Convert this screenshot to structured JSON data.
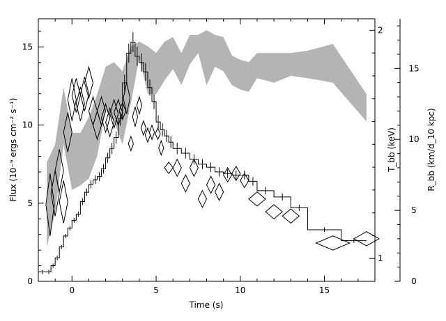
{
  "chart_data": {
    "type": "line",
    "title": "",
    "xlabel": "Time (s)",
    "ylabel_left": "Flux (10⁻⁹ ergs cm⁻² s⁻¹)",
    "ylabel_right_inner": "T_bb (keV)",
    "ylabel_right_outer": "R_bb (km/d_10 kpc)",
    "xlim": [
      -2,
      18
    ],
    "ylim_flux": [
      0,
      16.8
    ],
    "ylim_kT": [
      0.9,
      2.05
    ],
    "ylim_R": [
      0,
      18.5
    ],
    "x_ticks": [
      0,
      5,
      10,
      15
    ],
    "y_ticks_flux": [
      0,
      5,
      10,
      15
    ],
    "y_ticks_kT": [
      1,
      2
    ],
    "y_ticks_R": [
      0,
      5,
      10,
      15
    ],
    "colors": {
      "flux": "#000000",
      "kT_band": "#b4b4b4",
      "radius": "#000000"
    },
    "series": [
      {
        "name": "",
        "axis": "flux",
        "style": "step-with-errors",
        "points": [
          [
            -2.0,
            0.6
          ],
          [
            -1.5,
            0.6
          ],
          [
            -1.25,
            1.0
          ],
          [
            -1.0,
            1.5
          ],
          [
            -0.75,
            2.2
          ],
          [
            -0.5,
            2.9
          ],
          [
            -0.25,
            3.4
          ],
          [
            0.0,
            3.9
          ],
          [
            0.25,
            4.3
          ],
          [
            0.5,
            5.1
          ],
          [
            0.75,
            5.7
          ],
          [
            1.0,
            6.2
          ],
          [
            1.25,
            6.5
          ],
          [
            1.5,
            6.7
          ],
          [
            1.75,
            7.2
          ],
          [
            2.0,
            7.9
          ],
          [
            2.25,
            8.5
          ],
          [
            2.5,
            9.2
          ],
          [
            2.75,
            10.4
          ],
          [
            3.0,
            12.7
          ],
          [
            3.25,
            14.6
          ],
          [
            3.5,
            15.3
          ],
          [
            3.75,
            14.4
          ],
          [
            4.0,
            14.0
          ],
          [
            4.25,
            13.4
          ],
          [
            4.5,
            12.4
          ],
          [
            4.75,
            11.5
          ],
          [
            5.0,
            10.2
          ],
          [
            5.25,
            9.7
          ],
          [
            5.5,
            9.3
          ],
          [
            5.75,
            8.9
          ],
          [
            6.0,
            8.5
          ],
          [
            6.5,
            8.2
          ],
          [
            7.0,
            7.8
          ],
          [
            7.5,
            7.5
          ],
          [
            8.0,
            7.3
          ],
          [
            8.5,
            7.0
          ],
          [
            9.0,
            6.9
          ],
          [
            9.5,
            6.8
          ],
          [
            10.0,
            6.8
          ],
          [
            10.5,
            6.4
          ],
          [
            11.0,
            5.8
          ],
          [
            12.0,
            5.4
          ],
          [
            13.0,
            4.7
          ],
          [
            14.0,
            3.3
          ],
          [
            16.0,
            2.6
          ],
          [
            17.5,
            2.6
          ]
        ]
      },
      {
        "name": "",
        "axis": "kT",
        "style": "band",
        "x": [
          -1.5,
          -1.0,
          -0.5,
          0.0,
          0.5,
          1.0,
          1.5,
          2.0,
          2.5,
          3.0,
          3.5,
          4.0,
          4.5,
          5.0,
          5.5,
          6.0,
          6.5,
          7.0,
          7.5,
          8.0,
          8.5,
          9.0,
          9.5,
          10.0,
          10.5,
          11.0,
          12.0,
          13.0,
          14.0,
          15.5,
          17.5
        ],
        "lo": [
          1.05,
          1.2,
          1.5,
          1.3,
          1.32,
          1.35,
          1.45,
          1.65,
          1.6,
          1.5,
          1.68,
          1.88,
          1.72,
          1.72,
          1.78,
          1.83,
          1.76,
          1.85,
          1.9,
          1.76,
          1.84,
          1.82,
          1.76,
          1.74,
          1.73,
          1.79,
          1.77,
          1.8,
          1.79,
          1.77,
          1.6
        ],
        "hi": [
          1.42,
          1.5,
          1.75,
          1.55,
          1.55,
          1.62,
          1.72,
          1.84,
          1.86,
          1.82,
          1.93,
          1.95,
          1.93,
          1.9,
          1.95,
          1.97,
          1.9,
          1.98,
          1.98,
          2.0,
          1.98,
          1.97,
          1.89,
          1.87,
          1.86,
          1.9,
          1.9,
          1.9,
          1.91,
          1.94,
          1.72
        ]
      },
      {
        "name": "",
        "axis": "R",
        "style": "diamonds",
        "points": [
          {
            "x": -1.3,
            "y": 5.4,
            "dx": 0.25,
            "dy": 2.2
          },
          {
            "x": -1.0,
            "y": 6.2,
            "dx": 0.25,
            "dy": 1.6
          },
          {
            "x": -0.75,
            "y": 7.8,
            "dx": 0.25,
            "dy": 1.5
          },
          {
            "x": -0.5,
            "y": 5.6,
            "dx": 0.25,
            "dy": 1.5
          },
          {
            "x": -0.25,
            "y": 10.5,
            "dx": 0.25,
            "dy": 1.4
          },
          {
            "x": 0.0,
            "y": 12.8,
            "dx": 0.25,
            "dy": 1.5
          },
          {
            "x": 0.25,
            "y": 13.1,
            "dx": 0.25,
            "dy": 1.2
          },
          {
            "x": 0.5,
            "y": 12.5,
            "dx": 0.25,
            "dy": 1.2
          },
          {
            "x": 0.75,
            "y": 13.2,
            "dx": 0.25,
            "dy": 1.2
          },
          {
            "x": 1.0,
            "y": 14.0,
            "dx": 0.25,
            "dy": 1.1
          },
          {
            "x": 1.25,
            "y": 12.0,
            "dx": 0.25,
            "dy": 1.0
          },
          {
            "x": 1.5,
            "y": 11.0,
            "dx": 0.25,
            "dy": 1.0
          },
          {
            "x": 1.75,
            "y": 12.0,
            "dx": 0.25,
            "dy": 1.0
          },
          {
            "x": 2.0,
            "y": 11.5,
            "dx": 0.25,
            "dy": 1.0
          },
          {
            "x": 2.25,
            "y": 11.2,
            "dx": 0.25,
            "dy": 1.0
          },
          {
            "x": 2.5,
            "y": 11.8,
            "dx": 0.25,
            "dy": 1.0
          },
          {
            "x": 2.75,
            "y": 11.9,
            "dx": 0.25,
            "dy": 0.9
          },
          {
            "x": 3.0,
            "y": 12.0,
            "dx": 0.2,
            "dy": 0.6
          },
          {
            "x": 3.25,
            "y": 12.9,
            "dx": 0.2,
            "dy": 1.1
          },
          {
            "x": 3.5,
            "y": 9.7,
            "dx": 0.15,
            "dy": 0.5
          },
          {
            "x": 3.75,
            "y": 11.6,
            "dx": 0.15,
            "dy": 0.7
          },
          {
            "x": 4.0,
            "y": 12.4,
            "dx": 0.15,
            "dy": 0.6
          },
          {
            "x": 4.25,
            "y": 10.8,
            "dx": 0.15,
            "dy": 0.5
          },
          {
            "x": 4.5,
            "y": 10.3,
            "dx": 0.15,
            "dy": 0.5
          },
          {
            "x": 4.75,
            "y": 10.5,
            "dx": 0.15,
            "dy": 0.5
          },
          {
            "x": 5.1,
            "y": 10.4,
            "dx": 0.15,
            "dy": 0.4
          },
          {
            "x": 5.3,
            "y": 9.4,
            "dx": 0.15,
            "dy": 0.5
          },
          {
            "x": 5.75,
            "y": 8.0,
            "dx": 0.25,
            "dy": 0.4
          },
          {
            "x": 6.25,
            "y": 8.0,
            "dx": 0.25,
            "dy": 0.6
          },
          {
            "x": 6.75,
            "y": 6.9,
            "dx": 0.25,
            "dy": 0.6
          },
          {
            "x": 7.25,
            "y": 8.0,
            "dx": 0.25,
            "dy": 0.6
          },
          {
            "x": 7.75,
            "y": 5.8,
            "dx": 0.25,
            "dy": 0.6
          },
          {
            "x": 8.25,
            "y": 6.8,
            "dx": 0.25,
            "dy": 0.6
          },
          {
            "x": 8.75,
            "y": 6.3,
            "dx": 0.25,
            "dy": 0.6
          },
          {
            "x": 9.25,
            "y": 7.5,
            "dx": 0.25,
            "dy": 0.5
          },
          {
            "x": 9.75,
            "y": 7.6,
            "dx": 0.25,
            "dy": 0.5
          },
          {
            "x": 10.25,
            "y": 7.1,
            "dx": 0.25,
            "dy": 0.5
          },
          {
            "x": 11.0,
            "y": 5.8,
            "dx": 0.5,
            "dy": 0.5
          },
          {
            "x": 12.0,
            "y": 4.9,
            "dx": 0.5,
            "dy": 0.5
          },
          {
            "x": 13.0,
            "y": 4.6,
            "dx": 0.5,
            "dy": 0.5
          },
          {
            "x": 15.5,
            "y": 2.7,
            "dx": 1.0,
            "dy": 0.5
          },
          {
            "x": 17.5,
            "y": 3.0,
            "dx": 0.75,
            "dy": 0.5
          }
        ]
      }
    ]
  }
}
